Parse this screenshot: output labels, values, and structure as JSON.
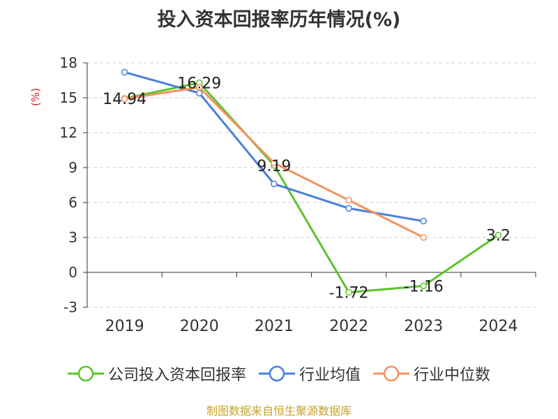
{
  "title": "投入资本回报率历年情况(%)",
  "unit_label": "(%)",
  "source": "制图数据来自恒生聚源数据库",
  "colors": {
    "axis": "#333333",
    "grid": "#cccccc",
    "unit": "#cc2222",
    "source": "#c9a227"
  },
  "chart_data": {
    "type": "line",
    "title": "投入资本回报率历年情况(%)",
    "xlabel": "",
    "ylabel": "(%)",
    "categories": [
      "2019",
      "2020",
      "2021",
      "2022",
      "2023",
      "2024"
    ],
    "ylim": [
      -3,
      18
    ],
    "yticks": [
      -3,
      0,
      3,
      6,
      9,
      12,
      15,
      18
    ],
    "ytick_labels": [
      "-3",
      "0",
      "3",
      "6",
      "9",
      "12",
      "15",
      "18"
    ],
    "grid": true,
    "legend_position": "bottom",
    "series": [
      {
        "name": "公司投入资本回报率",
        "color": "#5ac42b",
        "values": [
          14.94,
          16.29,
          9.19,
          -1.72,
          -1.16,
          3.2
        ],
        "labels": [
          "14.94",
          "16.29",
          "9.19",
          "-1.72",
          "-1.16",
          "3.2"
        ]
      },
      {
        "name": "行业均值",
        "color": "#4a7fdc",
        "values": [
          17.2,
          15.4,
          7.6,
          5.5,
          4.4,
          null
        ]
      },
      {
        "name": "行业中位数",
        "color": "#f5915e",
        "values": [
          14.9,
          15.9,
          9.4,
          6.2,
          3.0,
          null
        ]
      }
    ]
  }
}
